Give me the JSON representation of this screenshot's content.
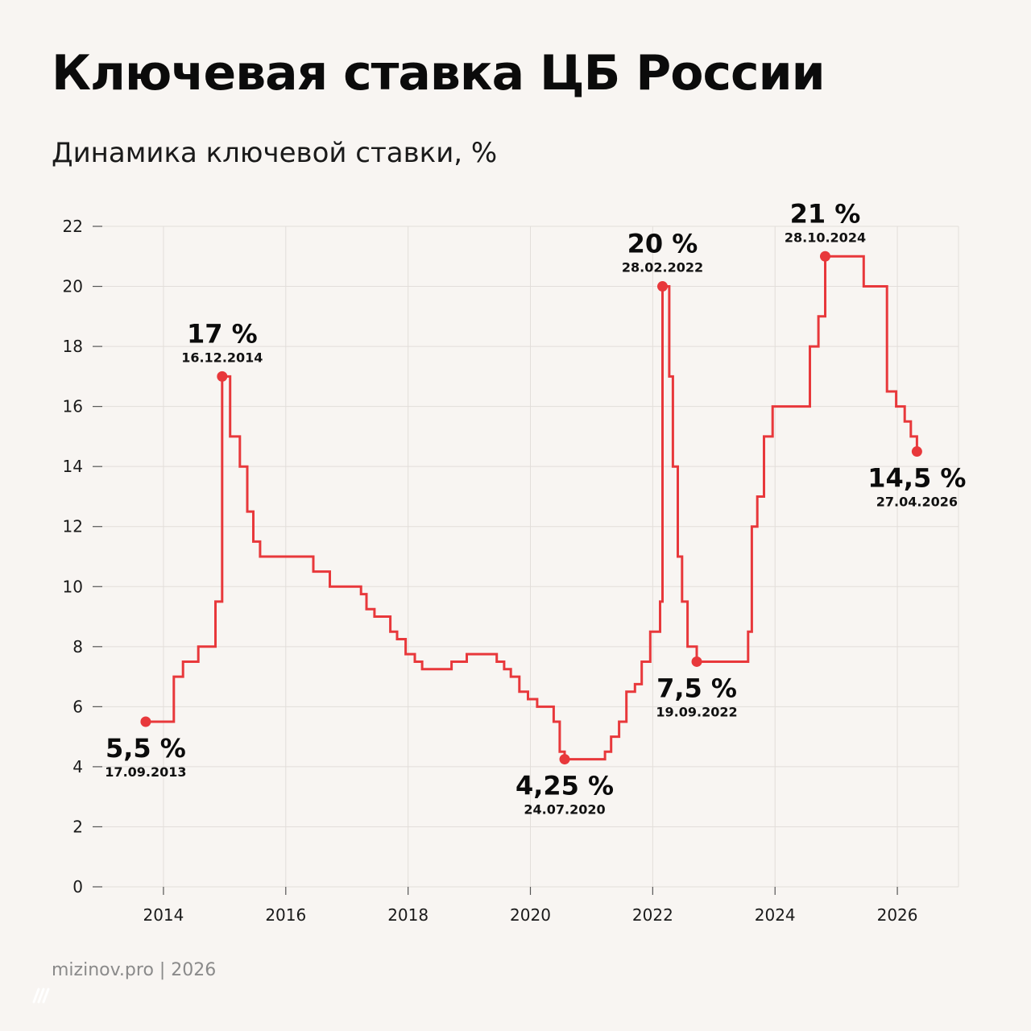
{
  "title": "Ключевая ставка ЦБ России",
  "subtitle": "Динамика ключевой ставки, %",
  "footer": "mizinov.pro | 2026",
  "colors": {
    "background": "#F8F5F2",
    "line": "#E8383B",
    "marker": "#E8383B",
    "grid": "#E2DEDA",
    "text": "#0b0b0b"
  },
  "chart_data": {
    "type": "line",
    "step": true,
    "grid": true,
    "xlim": [
      2013.0,
      2027.0
    ],
    "ylim": [
      0,
      22
    ],
    "x_ticks": [
      2014,
      2016,
      2018,
      2020,
      2022,
      2024,
      2026
    ],
    "x_tick_labels": [
      "2014",
      "2016",
      "2018",
      "2020",
      "2022",
      "2024",
      "2026"
    ],
    "y_ticks": [
      0,
      2,
      4,
      6,
      8,
      10,
      12,
      14,
      16,
      18,
      20,
      22
    ],
    "y_tick_labels": [
      "0",
      "2",
      "4",
      "6",
      "8",
      "10",
      "12",
      "14",
      "16",
      "18",
      "20",
      "22"
    ],
    "series": [
      {
        "values": [
          [
            2013.71,
            5.5
          ],
          [
            2014.17,
            7.0
          ],
          [
            2014.32,
            7.5
          ],
          [
            2014.57,
            8.0
          ],
          [
            2014.85,
            9.5
          ],
          [
            2014.96,
            17.0
          ],
          [
            2015.09,
            15.0
          ],
          [
            2015.25,
            14.0
          ],
          [
            2015.37,
            12.5
          ],
          [
            2015.47,
            11.5
          ],
          [
            2015.58,
            11.0
          ],
          [
            2016.45,
            10.5
          ],
          [
            2016.72,
            10.0
          ],
          [
            2017.23,
            9.75
          ],
          [
            2017.32,
            9.25
          ],
          [
            2017.45,
            9.0
          ],
          [
            2017.71,
            8.5
          ],
          [
            2017.82,
            8.25
          ],
          [
            2017.96,
            7.75
          ],
          [
            2018.11,
            7.5
          ],
          [
            2018.23,
            7.25
          ],
          [
            2018.71,
            7.5
          ],
          [
            2018.96,
            7.75
          ],
          [
            2019.45,
            7.5
          ],
          [
            2019.57,
            7.25
          ],
          [
            2019.68,
            7.0
          ],
          [
            2019.82,
            6.5
          ],
          [
            2019.96,
            6.25
          ],
          [
            2020.11,
            6.0
          ],
          [
            2020.38,
            5.5
          ],
          [
            2020.48,
            4.5
          ],
          [
            2020.56,
            4.25
          ],
          [
            2021.22,
            4.5
          ],
          [
            2021.32,
            5.0
          ],
          [
            2021.45,
            5.5
          ],
          [
            2021.57,
            6.5
          ],
          [
            2021.71,
            6.75
          ],
          [
            2021.82,
            7.5
          ],
          [
            2021.96,
            8.5
          ],
          [
            2022.12,
            9.5
          ],
          [
            2022.16,
            20.0
          ],
          [
            2022.27,
            17.0
          ],
          [
            2022.33,
            14.0
          ],
          [
            2022.41,
            11.0
          ],
          [
            2022.48,
            9.5
          ],
          [
            2022.57,
            8.0
          ],
          [
            2022.72,
            7.5
          ],
          [
            2023.56,
            8.5
          ],
          [
            2023.62,
            12.0
          ],
          [
            2023.71,
            13.0
          ],
          [
            2023.82,
            15.0
          ],
          [
            2023.96,
            16.0
          ],
          [
            2024.57,
            18.0
          ],
          [
            2024.71,
            19.0
          ],
          [
            2024.82,
            21.0
          ],
          [
            2025.45,
            20.0
          ],
          [
            2025.83,
            16.5
          ],
          [
            2025.98,
            16.0
          ],
          [
            2026.12,
            15.5
          ],
          [
            2026.22,
            15.0
          ],
          [
            2026.32,
            14.5
          ]
        ]
      }
    ],
    "annotations": [
      {
        "x": 2013.71,
        "y": 5.5,
        "value": "5,5 %",
        "date": "17.09.2013",
        "position": "below"
      },
      {
        "x": 2014.96,
        "y": 17.0,
        "value": "17 %",
        "date": "16.12.2014",
        "position": "above"
      },
      {
        "x": 2020.56,
        "y": 4.25,
        "value": "4,25 %",
        "date": "24.07.2020",
        "position": "below"
      },
      {
        "x": 2022.16,
        "y": 20.0,
        "value": "20 %",
        "date": "28.02.2022",
        "position": "above"
      },
      {
        "x": 2022.72,
        "y": 7.5,
        "value": "7,5 %",
        "date": "19.09.2022",
        "position": "below"
      },
      {
        "x": 2024.82,
        "y": 21.0,
        "value": "21 %",
        "date": "28.10.2024",
        "position": "above"
      },
      {
        "x": 2026.32,
        "y": 14.5,
        "value": "14,5 %",
        "date": "27.04.2026",
        "position": "below"
      }
    ]
  }
}
